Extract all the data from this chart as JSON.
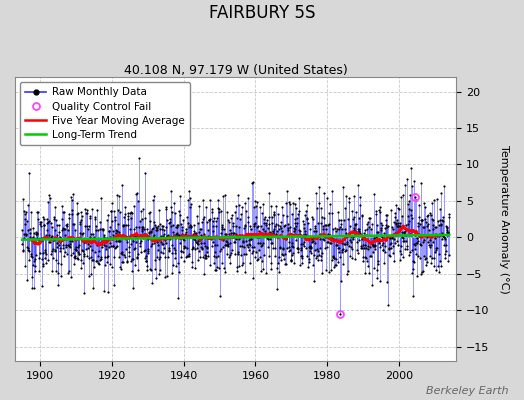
{
  "title": "FAIRBURY 5S",
  "subtitle": "40.108 N, 97.179 W (United States)",
  "ylabel": "Temperature Anomaly (°C)",
  "watermark": "Berkeley Earth",
  "year_start": 1895,
  "year_end": 2014,
  "ylim": [
    -17,
    22
  ],
  "yticks": [
    -15,
    -10,
    -5,
    0,
    5,
    10,
    15,
    20
  ],
  "xticks": [
    1900,
    1920,
    1940,
    1960,
    1980,
    2000
  ],
  "xlim_start": 1893,
  "xlim_end": 2016,
  "fig_bg_color": "#d8d8d8",
  "plot_bg_color": "#ffffff",
  "raw_line_color": "#3333ff",
  "raw_dot_color": "#000000",
  "moving_avg_color": "#ff0000",
  "trend_color": "#00cc00",
  "qc_fail_color": "#ff44ff",
  "grid_color": "#bbbbbb",
  "seed": 12345,
  "noise_std": 2.8,
  "qc_year_1": 1983.5,
  "qc_val_1": -10.5,
  "qc_year_2": 2004.5,
  "qc_val_2": 5.5,
  "moving_avg_window": 60,
  "title_fontsize": 12,
  "subtitle_fontsize": 9,
  "tick_fontsize": 8,
  "ylabel_fontsize": 8,
  "legend_fontsize": 7.5,
  "watermark_fontsize": 8
}
